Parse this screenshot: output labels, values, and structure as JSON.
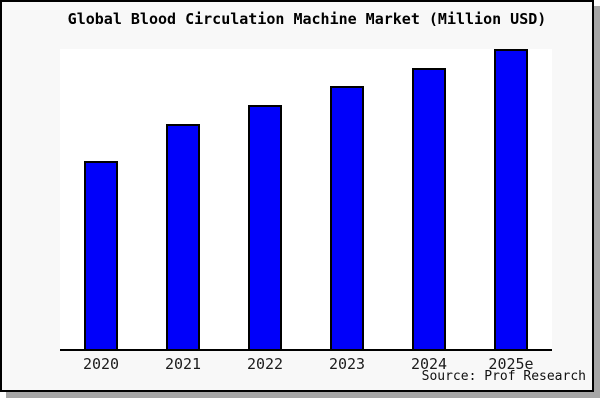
{
  "chart_data": {
    "type": "bar",
    "title": "Global Blood Circulation Machine Market (Million USD)",
    "categories": [
      "2020",
      "2021",
      "2022",
      "2023",
      "2024",
      "2025e"
    ],
    "values": [
      62.8,
      75.1,
      81.5,
      87.7,
      93.7,
      100
    ],
    "value_scale_note": "no y-axis shown; values are relative bar heights as % of 2025e bar",
    "xlabel": "",
    "ylabel": "",
    "ylim": [
      0,
      100
    ],
    "grid": false,
    "legend": false,
    "bar_color": "#0000fa",
    "bar_border_color": "#000000",
    "source_note": "Source: Prof Research"
  },
  "colors": {
    "card_background": "#f8f8f8",
    "plot_background": "#ffffff",
    "frame_border": "#000000",
    "shadow": "#a6a6a6",
    "label_text": "#1c1c1c"
  }
}
